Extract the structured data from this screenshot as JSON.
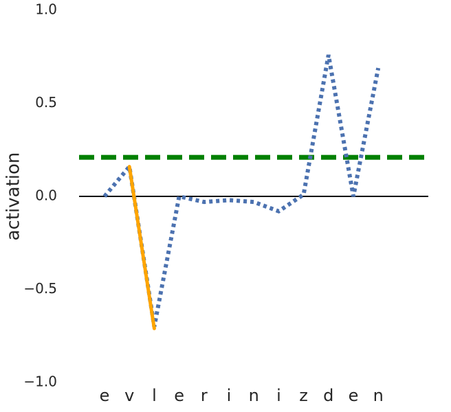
{
  "chart_data": {
    "type": "line",
    "y_label": "activation",
    "categories": [
      "e",
      "v",
      "l",
      "e",
      "r",
      "i",
      "n",
      "i",
      "z",
      "d",
      "e",
      "n"
    ],
    "series": [
      {
        "color": "#4c72b0",
        "style": "dotted",
        "values": [
          0.0,
          0.16,
          -0.7,
          0.0,
          -0.03,
          -0.02,
          -0.03,
          -0.08,
          0.01,
          0.76,
          0.0,
          0.69
        ]
      },
      {
        "color": "#ffa500",
        "style": "solid",
        "values": [
          null,
          0.16,
          -0.71,
          null,
          null,
          null,
          null,
          null,
          null,
          null,
          null,
          null
        ]
      }
    ],
    "hlines": [
      {
        "value": 0.21,
        "color": "#008000",
        "style": "dashed"
      },
      {
        "value": 0,
        "color": "#000000",
        "style": "solid"
      }
    ],
    "ylim": [
      -1.0,
      1.0
    ],
    "yticks": [
      {
        "value": -1.0,
        "label": "−1.0"
      },
      {
        "value": -0.5,
        "label": "−0.5"
      },
      {
        "value": 0,
        "label": "0.0"
      },
      {
        "value": 0.5,
        "label": "0.5"
      },
      {
        "value": 1.0,
        "label": "1.0"
      }
    ],
    "grid": false
  }
}
